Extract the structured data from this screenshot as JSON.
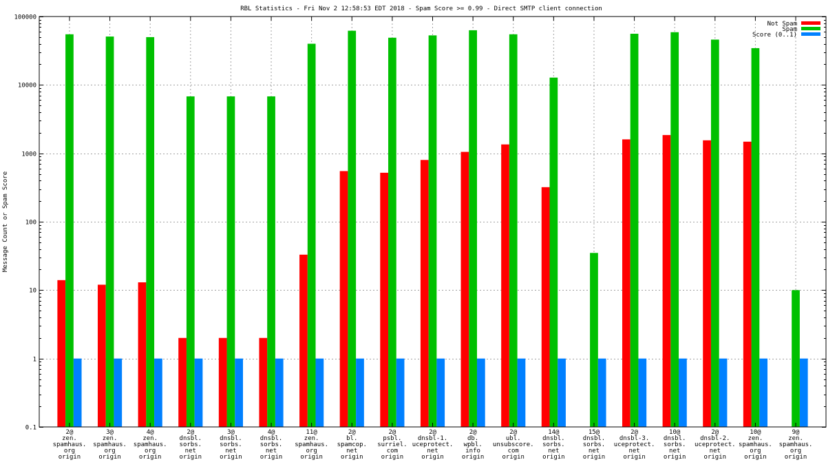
{
  "chart_data": {
    "type": "bar",
    "title": "RBL Statistics - Fri Nov  2 12:58:53 EDT 2018 - Spam Score >= 0.99 - Direct SMTP client connection",
    "xlabel": "",
    "ylabel": "Message Count or Spam Score",
    "yscale": "log",
    "ylim": [
      0.1,
      100000
    ],
    "yticks": [
      {
        "value": 0.1,
        "label": "0.1"
      },
      {
        "value": 1,
        "label": "1"
      },
      {
        "value": 10,
        "label": "10"
      },
      {
        "value": 100,
        "label": "100"
      },
      {
        "value": 1000,
        "label": "1000"
      },
      {
        "value": 10000,
        "label": "10000"
      },
      {
        "value": 100000,
        "label": "100000"
      }
    ],
    "grid": true,
    "legend_position": "top-right",
    "categories": [
      [
        "2@",
        "zen.",
        "spamhaus.",
        "org",
        "origin"
      ],
      [
        "3@",
        "zen.",
        "spamhaus.",
        "org",
        "origin"
      ],
      [
        "4@",
        "zen.",
        "spamhaus.",
        "org",
        "origin"
      ],
      [
        "2@",
        "dnsbl.",
        "sorbs.",
        "net",
        "origin"
      ],
      [
        "3@",
        "dnsbl.",
        "sorbs.",
        "net",
        "origin"
      ],
      [
        "4@",
        "dnsbl.",
        "sorbs.",
        "net",
        "origin"
      ],
      [
        "11@",
        "zen.",
        "spamhaus.",
        "org",
        "origin"
      ],
      [
        "2@",
        "bl.",
        "spamcop.",
        "net",
        "origin"
      ],
      [
        "2@",
        "psbl.",
        "surriel.",
        "com",
        "origin"
      ],
      [
        "2@",
        "dnsbl-1.",
        "uceprotect.",
        "net",
        "origin"
      ],
      [
        "2@",
        "db.",
        "wpbl.",
        "info",
        "origin"
      ],
      [
        "2@",
        "ubl.",
        "unsubscore.",
        "com",
        "origin"
      ],
      [
        "14@",
        "dnsbl.",
        "sorbs.",
        "net",
        "origin"
      ],
      [
        "15@",
        "dnsbl.",
        "sorbs.",
        "net",
        "origin"
      ],
      [
        "2@",
        "dnsbl-3.",
        "uceprotect.",
        "net",
        "origin"
      ],
      [
        "10@",
        "dnsbl.",
        "sorbs.",
        "net",
        "origin"
      ],
      [
        "2@",
        "dnsbl-2.",
        "uceprotect.",
        "net",
        "origin"
      ],
      [
        "10@",
        "zen.",
        "spamhaus.",
        "org",
        "origin"
      ],
      [
        "9@",
        "zen.",
        "spamhaus.",
        "org",
        "origin"
      ]
    ],
    "series": [
      {
        "name": "Not Spam",
        "color": "#ff0000",
        "values": [
          14,
          12,
          13,
          2,
          2,
          2,
          33,
          550,
          520,
          800,
          1050,
          1350,
          320,
          null,
          1600,
          1850,
          1550,
          1480,
          null
        ]
      },
      {
        "name": "Spam",
        "color": "#00c000",
        "values": [
          55000,
          51000,
          50000,
          6800,
          6800,
          6800,
          40000,
          62000,
          49000,
          53000,
          63000,
          55000,
          12800,
          35,
          56000,
          59000,
          46000,
          34500,
          10
        ]
      },
      {
        "name": "Score (0..1)",
        "color": "#0080ff",
        "values": [
          1,
          1,
          1,
          1,
          1,
          1,
          1,
          1,
          1,
          1,
          1,
          1,
          1,
          1,
          1,
          1,
          1,
          1,
          1
        ]
      }
    ]
  }
}
